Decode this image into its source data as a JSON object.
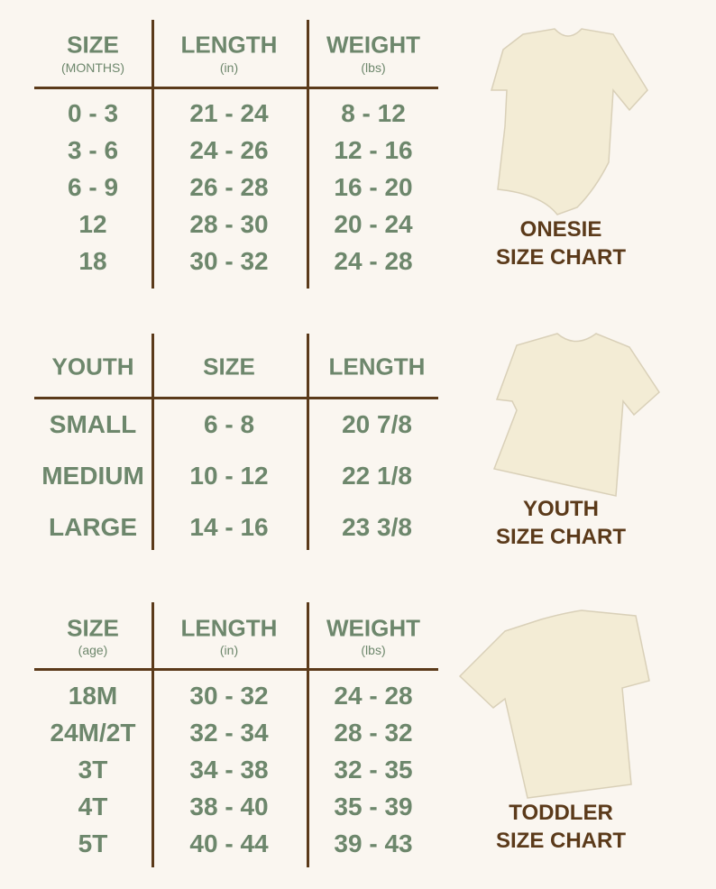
{
  "colors": {
    "text_green": "#6d876c",
    "line_brown": "#5b3a1a",
    "caption_brown": "#5b3a1a",
    "background": "#faf6f0",
    "garment": "#f3ecd5"
  },
  "tables": [
    {
      "id": "onesie",
      "headers": [
        {
          "title": "SIZE",
          "sub": "(MONTHS)"
        },
        {
          "title": "LENGTH",
          "sub": "(in)"
        },
        {
          "title": "WEIGHT",
          "sub": "(lbs)"
        }
      ],
      "rows": [
        [
          "0 - 3",
          "21 - 24",
          "8 - 12"
        ],
        [
          "3 - 6",
          "24 - 26",
          "12 - 16"
        ],
        [
          "6 - 9",
          "26 - 28",
          "16 - 20"
        ],
        [
          "12",
          "28 - 30",
          "20 - 24"
        ],
        [
          "18",
          "30 - 32",
          "24 - 28"
        ]
      ],
      "caption": [
        "ONESIE",
        "SIZE CHART"
      ]
    },
    {
      "id": "youth",
      "headers": [
        {
          "title": "YOUTH"
        },
        {
          "title": "SIZE"
        },
        {
          "title": "LENGTH"
        }
      ],
      "rows": [
        [
          "SMALL",
          "6 - 8",
          "20 7/8"
        ],
        [
          "MEDIUM",
          "10 - 12",
          "22 1/8"
        ],
        [
          "LARGE",
          "14 - 16",
          "23 3/8"
        ]
      ],
      "caption": [
        "YOUTH",
        "SIZE CHART"
      ]
    },
    {
      "id": "toddler",
      "headers": [
        {
          "title": "SIZE",
          "sub": "(age)"
        },
        {
          "title": "LENGTH",
          "sub": "(in)"
        },
        {
          "title": "WEIGHT",
          "sub": "(lbs)"
        }
      ],
      "rows": [
        [
          "18M",
          "30 - 32",
          "24 - 28"
        ],
        [
          "24M/2T",
          "32 - 34",
          "28 - 32"
        ],
        [
          "3T",
          "34 - 38",
          "32 - 35"
        ],
        [
          "4T",
          "38 - 40",
          "35 - 39"
        ],
        [
          "5T",
          "40 - 44",
          "39 - 43"
        ]
      ],
      "caption": [
        "TODDLER",
        "SIZE CHART"
      ]
    }
  ]
}
